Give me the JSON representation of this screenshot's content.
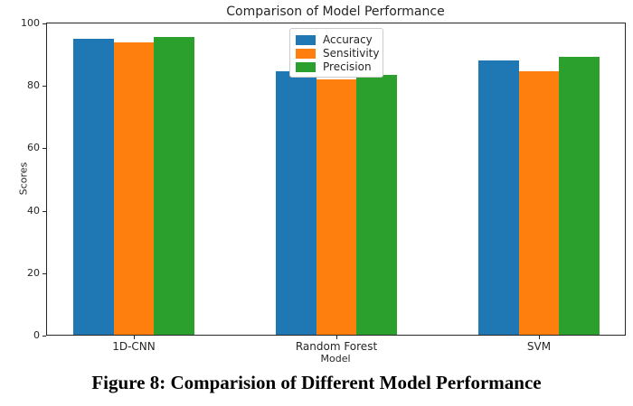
{
  "chart_data": {
    "type": "bar",
    "title": "Comparison of Model Performance",
    "xlabel": "Model",
    "ylabel": "Scores",
    "categories": [
      "1D-CNN",
      "Random Forest",
      "SVM"
    ],
    "series": [
      {
        "name": "Accuracy",
        "color": "#1f77b4",
        "values": [
          95.2,
          84.8,
          88.1
        ]
      },
      {
        "name": "Sensitivity",
        "color": "#ff7f0e",
        "values": [
          94.0,
          82.0,
          84.6
        ]
      },
      {
        "name": "Precision",
        "color": "#2ca02c",
        "values": [
          95.7,
          83.5,
          89.2
        ]
      }
    ],
    "yticks": [
      0,
      20,
      40,
      60,
      80,
      100
    ],
    "ylim": [
      0,
      100.3
    ],
    "grid": false,
    "legend_position": "upper center",
    "legend_items": [
      "Accuracy",
      "Sensitivity",
      "Precision"
    ]
  },
  "caption": {
    "text": "Figure 8: Comparision of Different Model Performance"
  },
  "colors": {
    "spine": "#262626",
    "text": "#262626",
    "legend_border": "#cccccc",
    "background": "#ffffff"
  }
}
